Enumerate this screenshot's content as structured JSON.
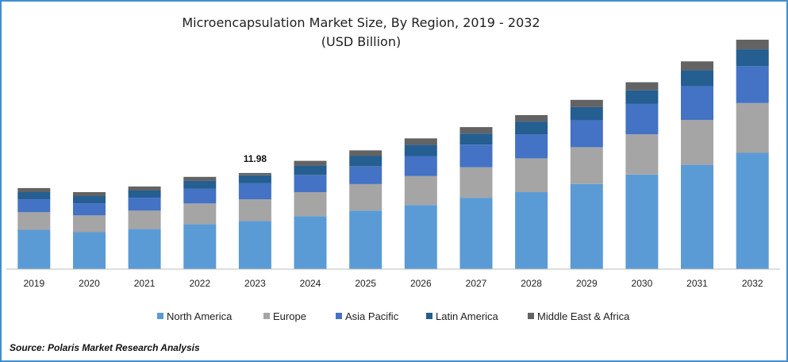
{
  "chart_data": {
    "type": "bar",
    "stacked": true,
    "title": "Microencapsulation Market Size, By Region, 2019 - 2032",
    "subtitle": "(USD Billion)",
    "xlabel": "",
    "ylabel": "",
    "categories": [
      "2019",
      "2020",
      "2021",
      "2022",
      "2023",
      "2024",
      "2025",
      "2026",
      "2027",
      "2028",
      "2029",
      "2030",
      "2031",
      "2032"
    ],
    "series": [
      {
        "name": "North America",
        "color": "#5b9bd5",
        "values": [
          4.9,
          4.6,
          5.0,
          5.6,
          6.0,
          6.6,
          7.3,
          8.0,
          8.9,
          9.6,
          10.6,
          11.8,
          13.0,
          14.5
        ]
      },
      {
        "name": "Europe",
        "color": "#a5a5a5",
        "values": [
          2.2,
          2.1,
          2.3,
          2.6,
          2.7,
          3.0,
          3.3,
          3.6,
          3.8,
          4.2,
          4.6,
          5.0,
          5.6,
          6.2
        ]
      },
      {
        "name": "Asia Pacific",
        "color": "#4472c4",
        "values": [
          1.6,
          1.5,
          1.6,
          1.8,
          2.0,
          2.1,
          2.2,
          2.5,
          2.8,
          3.0,
          3.4,
          3.8,
          4.2,
          4.6
        ]
      },
      {
        "name": "Latin America",
        "color": "#255e91",
        "values": [
          0.9,
          0.9,
          0.9,
          1.0,
          1.0,
          1.2,
          1.3,
          1.4,
          1.4,
          1.6,
          1.6,
          1.7,
          2.0,
          2.1
        ]
      },
      {
        "name": "Middle East & Africa",
        "color": "#636363",
        "values": [
          0.5,
          0.5,
          0.5,
          0.5,
          0.28,
          0.6,
          0.7,
          0.8,
          0.8,
          0.8,
          0.9,
          1.0,
          1.1,
          1.2
        ]
      }
    ],
    "data_labels": [
      {
        "category": "2023",
        "text": "11.98"
      }
    ],
    "ylim": [
      0,
      28.6
    ],
    "grid": false,
    "legend_position": "bottom"
  },
  "source": "Source: Polaris Market Research Analysis"
}
